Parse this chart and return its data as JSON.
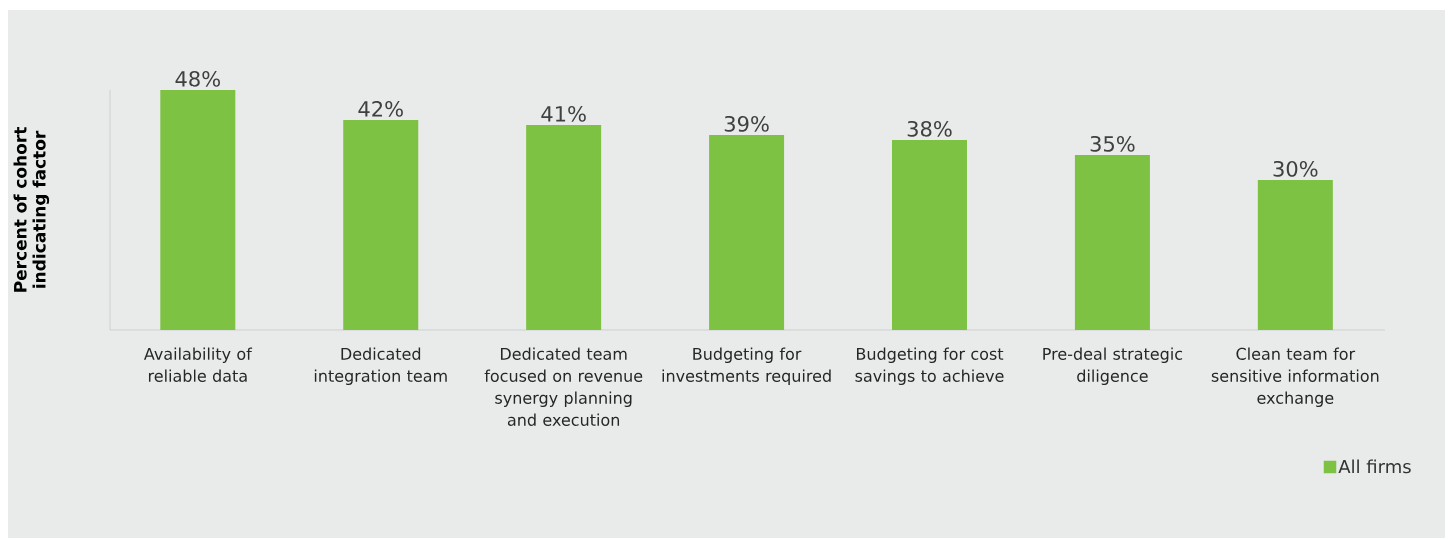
{
  "chart_data": {
    "type": "bar",
    "ylabel": "Percent of cohort indicating factor",
    "categories": [
      "Availability of reliable data",
      "Dedicated integration team",
      "Dedicated team focused on revenue synergy planning and execution",
      "Budgeting for investments required",
      "Budgeting for cost savings to achieve",
      "Pre-deal strategic diligence",
      "Clean team for sensitive information exchange"
    ],
    "series": [
      {
        "name": "All firms",
        "color": "#7dc242",
        "values": [
          48,
          42,
          41,
          39,
          38,
          35,
          30
        ],
        "value_labels": [
          "48%",
          "42%",
          "41%",
          "39%",
          "38%",
          "35%",
          "30%"
        ]
      }
    ],
    "ylim": [
      0,
      48
    ],
    "legend": "bottom right"
  }
}
